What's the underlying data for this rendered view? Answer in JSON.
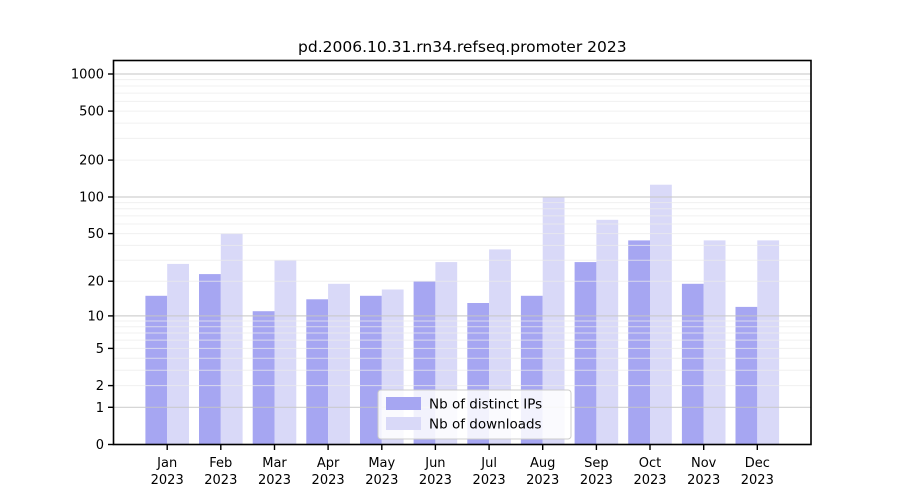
{
  "title": "pd.2006.10.31.rn34.refseq.promoter 2023",
  "chart_data": {
    "type": "bar",
    "title": "pd.2006.10.31.rn34.refseq.promoter 2023",
    "categories": [
      "Jan 2023",
      "Feb 2023",
      "Mar 2023",
      "Apr 2023",
      "May 2023",
      "Jun 2023",
      "Jul 2023",
      "Aug 2023",
      "Sep 2023",
      "Oct 2023",
      "Nov 2023",
      "Dec 2023"
    ],
    "categories_lines": [
      [
        "Jan",
        "2023"
      ],
      [
        "Feb",
        "2023"
      ],
      [
        "Mar",
        "2023"
      ],
      [
        "Apr",
        "2023"
      ],
      [
        "May",
        "2023"
      ],
      [
        "Jun",
        "2023"
      ],
      [
        "Jul",
        "2023"
      ],
      [
        "Aug",
        "2023"
      ],
      [
        "Sep",
        "2023"
      ],
      [
        "Oct",
        "2023"
      ],
      [
        "Nov",
        "2023"
      ],
      [
        "Dec",
        "2023"
      ]
    ],
    "series": [
      {
        "name": "Nb of distinct IPs",
        "color": "#a6a6f2",
        "values": [
          15,
          23,
          11,
          14,
          15,
          20,
          13,
          15,
          29,
          44,
          19,
          12
        ]
      },
      {
        "name": "Nb of downloads",
        "color": "#d9d9f8",
        "values": [
          28,
          50,
          30,
          19,
          17,
          29,
          37,
          100,
          65,
          126,
          44,
          44
        ]
      }
    ],
    "xlabel": "",
    "ylabel": "",
    "yscale": "log1p",
    "ylim": [
      0,
      1290
    ],
    "y_ticks": [
      0,
      1,
      2,
      5,
      10,
      20,
      50,
      100,
      200,
      500,
      1000
    ],
    "y_tick_labels": [
      "0",
      "1",
      "2",
      "5",
      "10",
      "20",
      "50",
      "100",
      "200",
      "500",
      "1000"
    ],
    "grid": "horizontal major (1,10,100,1000) + log minor lines",
    "legend_position": "lower center"
  },
  "colors": {
    "series_ips": "#a6a6f2",
    "series_downloads": "#d9d9f8",
    "grid_major": "#c6c6c6",
    "grid_minor": "#ebebeb",
    "axis": "#000000",
    "legend_border": "#cccccc",
    "background": "#ffffff"
  }
}
